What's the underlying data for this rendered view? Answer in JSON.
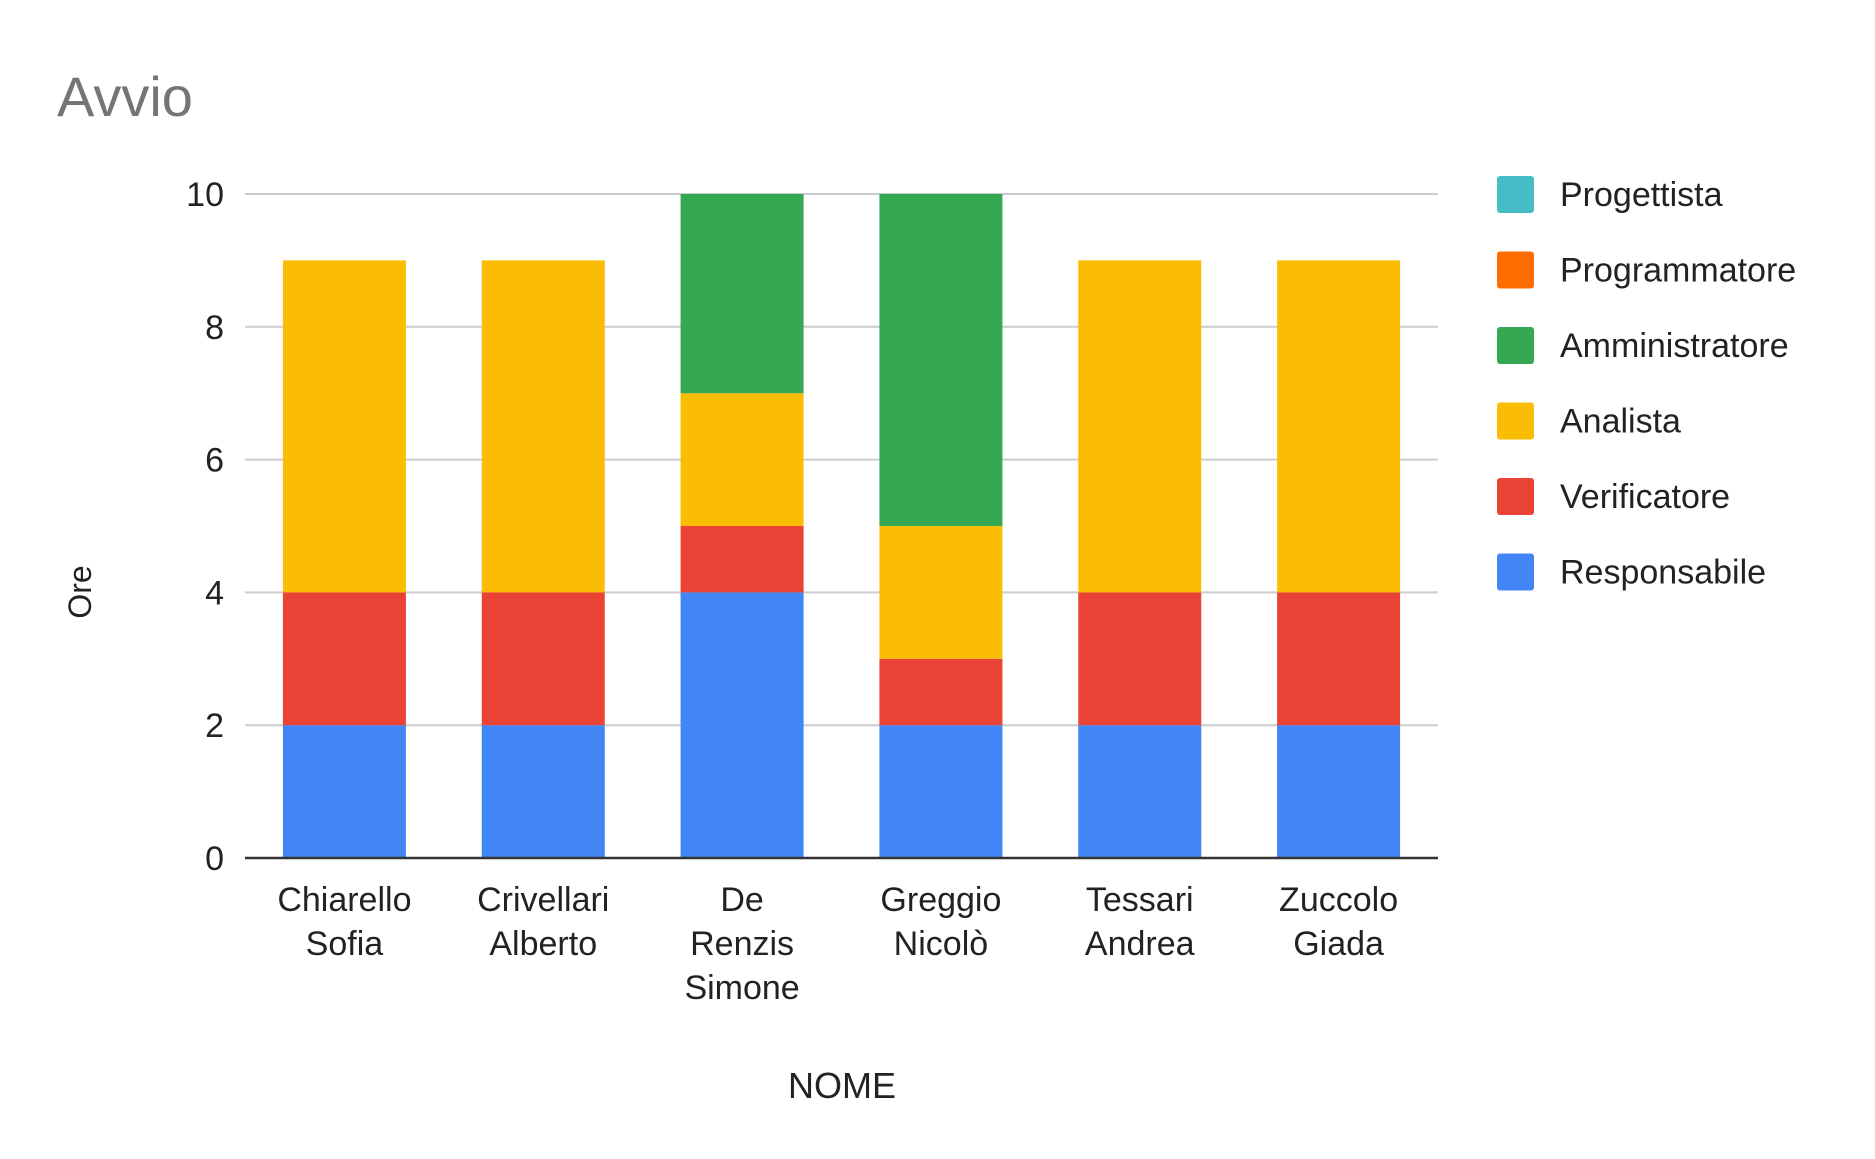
{
  "chart_data": {
    "type": "bar",
    "stacked": true,
    "title": "Avvio",
    "xlabel": "NOME",
    "ylabel": "Ore",
    "ylim": [
      0,
      10
    ],
    "yticks": [
      0,
      2,
      4,
      6,
      8,
      10
    ],
    "grid": true,
    "legend_position": "right",
    "categories": [
      [
        "Chiarello",
        "Sofia"
      ],
      [
        "Crivellari",
        "Alberto"
      ],
      [
        "De",
        "Renzis",
        "Simone"
      ],
      [
        "Greggio",
        "Nicolò"
      ],
      [
        "Tessari",
        "Andrea"
      ],
      [
        "Zuccolo",
        "Giada"
      ]
    ],
    "series": [
      {
        "name": "Responsabile",
        "color": "#4285f4",
        "values": [
          2,
          2,
          4,
          2,
          2,
          2
        ]
      },
      {
        "name": "Verificatore",
        "color": "#ea4335",
        "values": [
          2,
          2,
          1,
          1,
          2,
          2
        ]
      },
      {
        "name": "Analista",
        "color": "#fbbc04",
        "values": [
          5,
          5,
          2,
          2,
          5,
          5
        ]
      },
      {
        "name": "Amministratore",
        "color": "#34a853",
        "values": [
          0,
          0,
          3,
          5,
          0,
          0
        ]
      },
      {
        "name": "Programmatore",
        "color": "#ff6d01",
        "values": [
          0,
          0,
          0,
          0,
          0,
          0
        ]
      },
      {
        "name": "Progettista",
        "color": "#46bdc6",
        "values": [
          0,
          0,
          0,
          0,
          0,
          0
        ]
      }
    ],
    "legend_order": [
      "Progettista",
      "Programmatore",
      "Amministratore",
      "Analista",
      "Verificatore",
      "Responsabile"
    ]
  }
}
